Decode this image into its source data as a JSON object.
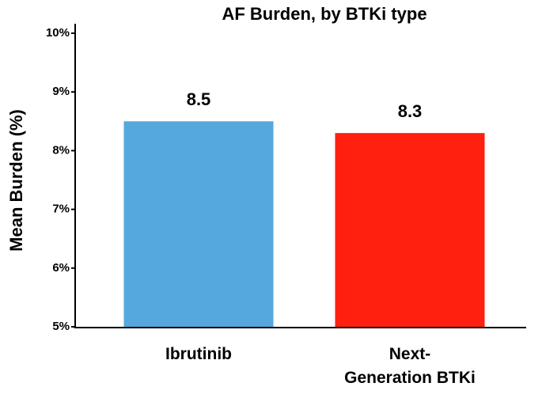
{
  "chart_data": {
    "type": "bar",
    "title": "AF Burden, by BTKi type",
    "y_label": "Mean Burden (%)",
    "categories": [
      "Ibrutinib",
      "Next-\nGeneration BTKi"
    ],
    "values": [
      8.5,
      8.3
    ],
    "colors": [
      "#55a8dc",
      "#ff2010"
    ],
    "ylim": [
      5,
      10
    ],
    "yticks": [
      {
        "value": 5,
        "label": "5%"
      },
      {
        "value": 6,
        "label": "6%"
      },
      {
        "value": 7,
        "label": "7%"
      },
      {
        "value": 8,
        "label": "8%"
      },
      {
        "value": 9,
        "label": "9%"
      },
      {
        "value": 10,
        "label": "10%"
      }
    ],
    "grid": false
  }
}
